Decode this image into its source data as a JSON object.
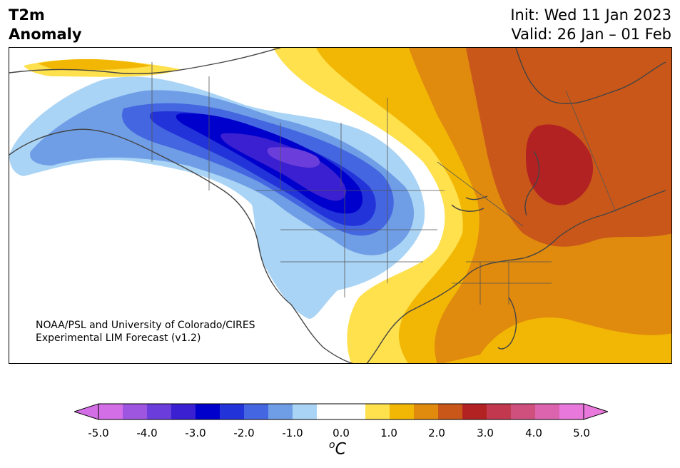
{
  "header": {
    "title_line1": "T2m",
    "title_line2": "Anomaly",
    "init": "Init: Wed 11 Jan 2023",
    "valid": "Valid: 26 Jan – 01 Feb"
  },
  "credit": {
    "line1": "NOAA/PSL and University of Colorado/CIRES",
    "line2": "Experimental LIM Forecast (v1.2)"
  },
  "colorbar": {
    "unit_base": "C",
    "unit_sup": "o",
    "tick_labels": [
      "-5.0",
      "-4.0",
      "-3.0",
      "-2.0",
      "-1.0",
      "0.0",
      "1.0",
      "2.0",
      "3.0",
      "4.0",
      "5.0"
    ],
    "colors": [
      "#d36ee6",
      "#9e55e0",
      "#6b3ddb",
      "#3a20d0",
      "#0000cc",
      "#2233d9",
      "#4466e0",
      "#6f9ee6",
      "#aad4f5",
      "#ffffff",
      "#ffffff",
      "#ffe04d",
      "#f2b705",
      "#e08a0e",
      "#c95719",
      "#b32222",
      "#c2384f",
      "#d0507d",
      "#dc64ae",
      "#e878dc"
    ],
    "under_color": "#d36ee6",
    "over_color": "#e878dc"
  },
  "map": {
    "region": "North America",
    "cold_anomaly_center": "Western Canada",
    "warm_anomaly_center": "Eastern Canada / Quebec"
  }
}
